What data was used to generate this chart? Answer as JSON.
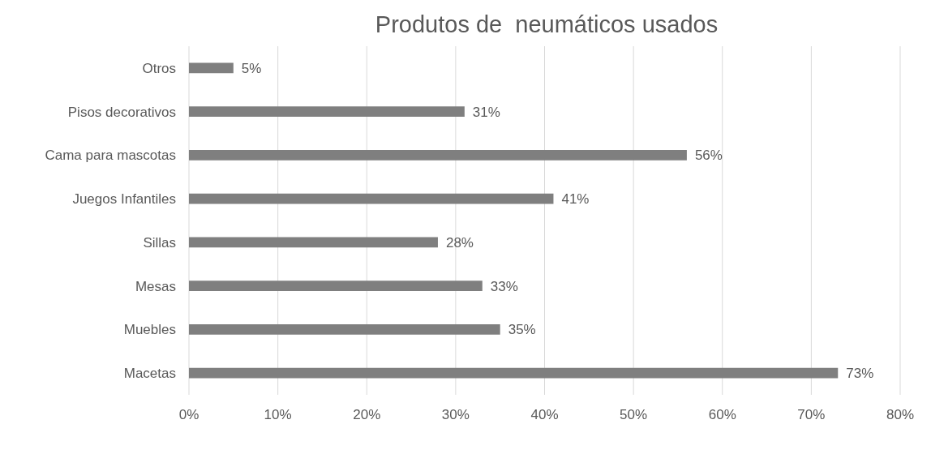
{
  "chart_data": {
    "type": "bar",
    "orientation": "horizontal",
    "title": "Produtos de  neumáticos usados",
    "categories": [
      "Otros",
      "Pisos decorativos",
      "Cama para mascotas",
      "Juegos Infantiles",
      "Sillas",
      "Mesas",
      "Muebles",
      "Macetas"
    ],
    "values": [
      5,
      31,
      56,
      41,
      28,
      33,
      35,
      73
    ],
    "value_labels": [
      "5%",
      "31%",
      "56%",
      "41%",
      "28%",
      "33%",
      "35%",
      "73%"
    ],
    "color": "#7f7f7f",
    "xlim": [
      0,
      80
    ],
    "xticks": [
      {
        "value": 0,
        "label": "0%"
      },
      {
        "value": 10,
        "label": "10%"
      },
      {
        "value": 20,
        "label": "20%"
      },
      {
        "value": 30,
        "label": "30%"
      },
      {
        "value": 40,
        "label": "40%"
      },
      {
        "value": 50,
        "label": "50%"
      },
      {
        "value": 60,
        "label": "60%"
      },
      {
        "value": 70,
        "label": "70%"
      },
      {
        "value": 80,
        "label": "80%"
      }
    ],
    "grid": "x"
  }
}
